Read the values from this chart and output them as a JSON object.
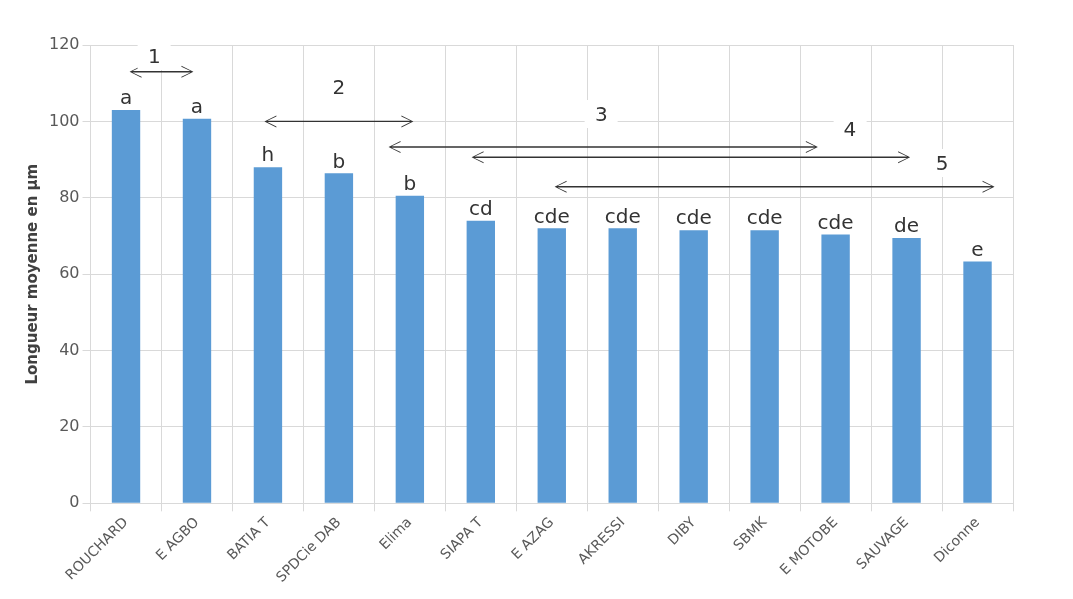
{
  "chart_data": {
    "type": "bar",
    "ylabel": "Longueur moyenne en µm",
    "categories": [
      "ROUCHARD",
      "E AGBO",
      "BATIA T",
      "SPDCie DAB",
      "Elima",
      "SIAPA T",
      "E AZAG",
      "AKRESSI",
      "DIBY",
      "SBMK",
      "E MOTOBE",
      "SAUVAGE",
      "Diconne"
    ],
    "values": [
      103,
      100.7,
      88,
      86.4,
      80.5,
      74,
      72,
      72,
      71.5,
      71.5,
      70.4,
      69.5,
      63.3
    ],
    "color": "#5b9bd5",
    "ylim": [
      0,
      120
    ],
    "yticks": [
      0,
      20,
      40,
      60,
      80,
      100,
      120
    ],
    "grid": true,
    "annotations": [
      {
        "text": "a",
        "x": "ROUCHARD",
        "y": 103
      },
      {
        "text": "a",
        "x": "E AGBO",
        "y": 100.7
      },
      {
        "text": "h",
        "x": "BATIA T",
        "y": 88
      },
      {
        "text": "b",
        "x": "SPDCie DAB",
        "y": 86.4
      },
      {
        "text": "b",
        "x": "Elima",
        "y": 80.5
      },
      {
        "text": "cd",
        "x": "SIAPA T",
        "y": 74
      },
      {
        "text": "cde",
        "x": "E AZAG",
        "y": 72
      },
      {
        "text": "cde",
        "x": "AKRESSI",
        "y": 72
      },
      {
        "text": "cde",
        "x": "DIBY",
        "y": 71.5
      },
      {
        "text": "cde",
        "x": "SBMK",
        "y": 71.5
      },
      {
        "text": "cde",
        "x": "E MOTOBE",
        "y": 70.4
      },
      {
        "text": "de",
        "x": "SAUVAGE",
        "y": 69.5
      },
      {
        "text": "e",
        "x": "Diconne",
        "y": 63.3
      },
      "1",
      "2",
      "3",
      "4",
      "5"
    ]
  }
}
